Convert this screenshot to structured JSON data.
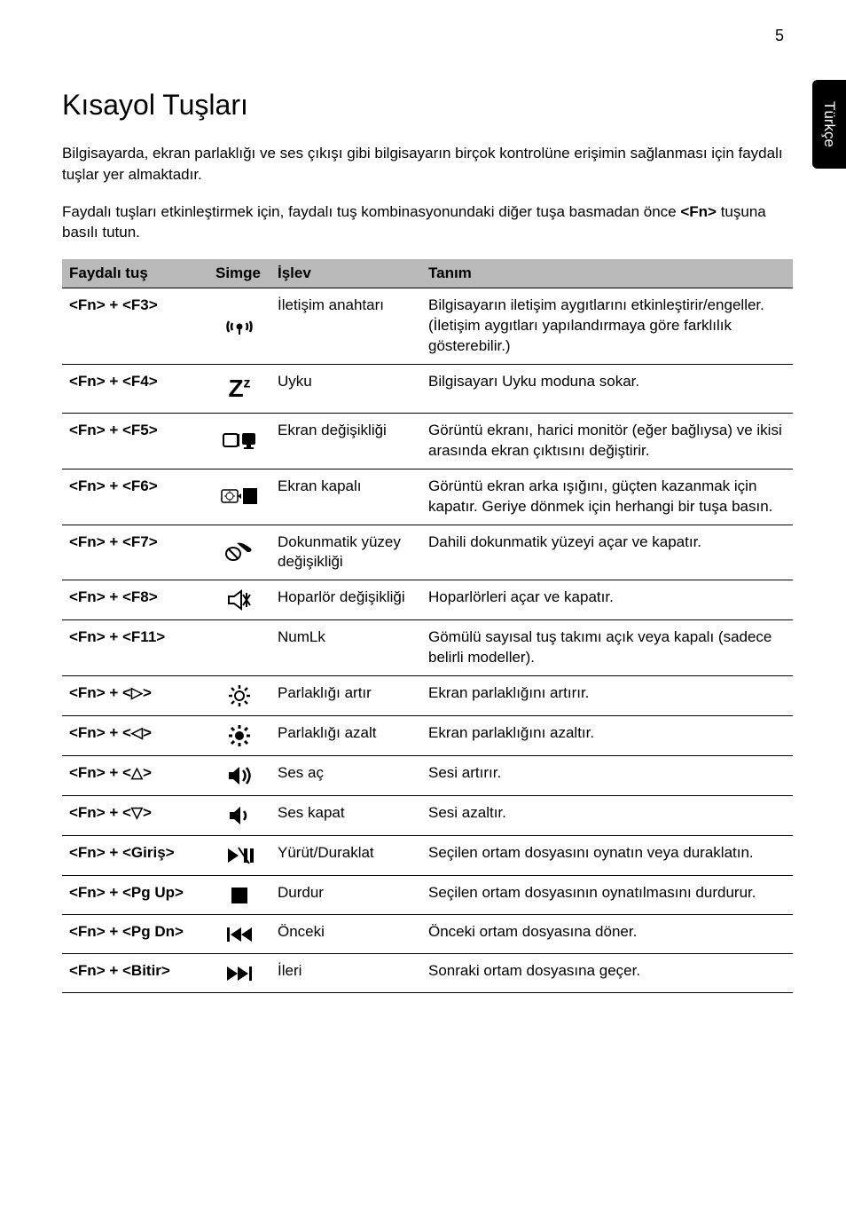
{
  "page_number": "5",
  "lang_tab": "Türkçe",
  "heading": "Kısayol Tuşları",
  "intro1": "Bilgisayarda, ekran parlaklığı ve ses çıkışı gibi bilgisayarın birçok kontrolüne erişimin sağlanması için faydalı tuşlar yer almaktadır.",
  "intro2_a": "Faydalı tuşları etkinleştirmek için, faydalı tuş kombinasyonundaki diğer tuşa basmadan önce ",
  "intro2_key": "<Fn>",
  "intro2_b": " tuşuna basılı tutun.",
  "columns": {
    "c1": "Faydalı tuş",
    "c2": "Simge",
    "c3": "İşlev",
    "c4": "Tanım"
  },
  "rows": [
    {
      "key": "<Fn> + <F3>",
      "icon": "wifi",
      "func": "İletişim anahtarı",
      "desc": "Bilgisayarın iletişim aygıtlarını etkinleştirir/engeller. (İletişim aygıtları yapılandırmaya göre farklılık gösterebilir.)"
    },
    {
      "key": "<Fn> + <F4>",
      "icon": "sleep",
      "func": "Uyku",
      "desc": "Bilgisayarı Uyku moduna sokar."
    },
    {
      "key": "<Fn> + <F5>",
      "icon": "display",
      "func": "Ekran değişikliği",
      "desc": "Görüntü ekranı, harici monitör (eğer bağlıysa) ve ikisi arasında ekran çıktısını değiştirir."
    },
    {
      "key": "<Fn> + <F6>",
      "icon": "screenoff",
      "func": "Ekran kapalı",
      "desc": "Görüntü ekran arka ışığını, güçten kazanmak için kapatır. Geriye dönmek için herhangi bir tuşa basın."
    },
    {
      "key": "<Fn> + <F7>",
      "icon": "touchpad",
      "func": "Dokunmatik yüzey değişikliği",
      "desc": "Dahili dokunmatik yüzeyi açar ve kapatır."
    },
    {
      "key": "<Fn> + <F8>",
      "icon": "speaker",
      "func": "Hoparlör değişikliği",
      "desc": "Hoparlörleri açar ve kapatır."
    },
    {
      "key": "<Fn> + <F11>",
      "icon": "",
      "func": "NumLk",
      "desc": "Gömülü sayısal tuş takımı açık veya kapalı (sadece belirli modeller)."
    },
    {
      "key": "<Fn> + <▷>",
      "icon": "brightup",
      "func": "Parlaklığı artır",
      "desc": "Ekran parlaklığını artırır."
    },
    {
      "key": "<Fn> + <◁>",
      "icon": "brightdown",
      "func": "Parlaklığı azalt",
      "desc": "Ekran parlaklığını azaltır."
    },
    {
      "key": "<Fn> + <△>",
      "icon": "volup",
      "func": "Ses aç",
      "desc": "Sesi artırır."
    },
    {
      "key": "<Fn> + <▽>",
      "icon": "voldown",
      "func": "Ses kapat",
      "desc": "Sesi azaltır."
    },
    {
      "key": "<Fn> + <Giriş>",
      "icon": "playpause",
      "func": "Yürüt/Duraklat",
      "desc": "Seçilen ortam dosyasını oynatın veya duraklatın."
    },
    {
      "key": "<Fn> + <Pg Up>",
      "icon": "stop",
      "func": "Durdur",
      "desc": "Seçilen ortam dosyasının oynatılmasını durdurur."
    },
    {
      "key": "<Fn> + <Pg Dn>",
      "icon": "prev",
      "func": "Önceki",
      "desc": "Önceki ortam dosyasına döner."
    },
    {
      "key": "<Fn> + <Bitir>",
      "icon": "next",
      "func": "İleri",
      "desc": "Sonraki ortam dosyasına geçer."
    }
  ],
  "icon_glyphs": {
    "wifi": "wifi",
    "sleep": "sleep",
    "display": "display",
    "screenoff": "screenoff",
    "touchpad": "touchpad",
    "speaker": "speaker",
    "brightup": "brightup",
    "brightdown": "brightdown",
    "volup": "volup",
    "voldown": "voldown",
    "playpause": "playpause",
    "stop": "stop",
    "prev": "prev",
    "next": "next"
  },
  "styles": {
    "header_bg": "#b9b9b9",
    "border_color": "#000000",
    "body_bg": "#ffffff",
    "text_color": "#000000",
    "font_family": "Arial, Helvetica, sans-serif",
    "base_fontsize": 17,
    "heading_fontsize": 32
  }
}
